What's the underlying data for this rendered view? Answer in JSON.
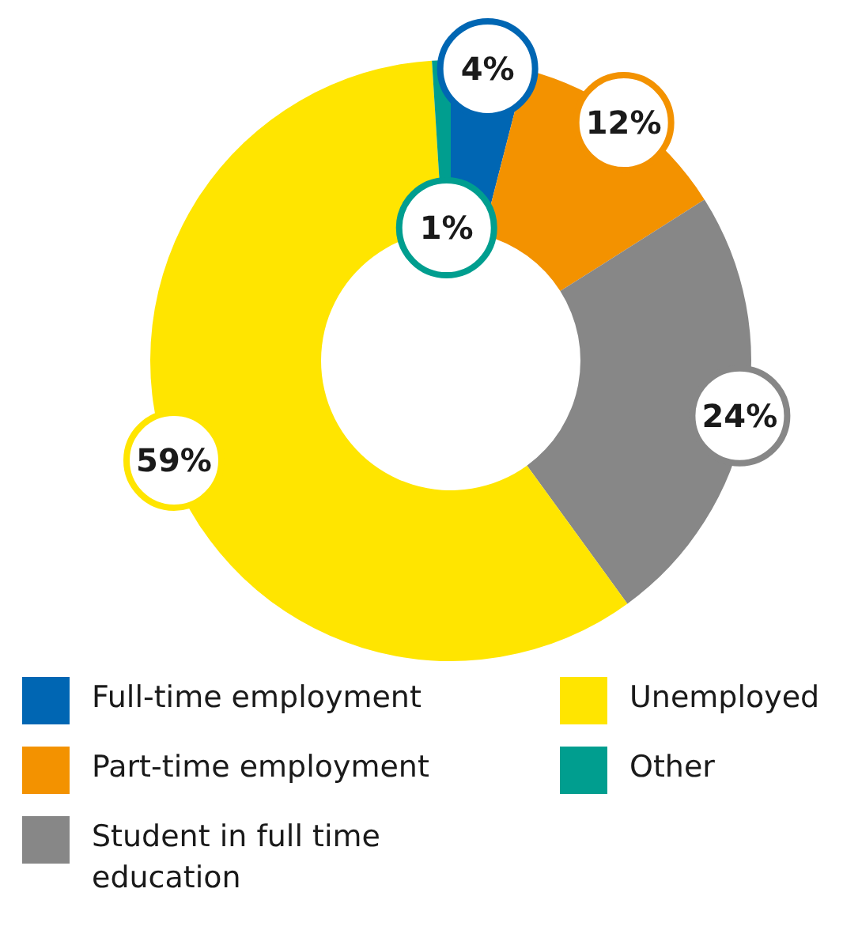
{
  "chart_data": {
    "type": "donut",
    "categories": [
      "Full-time employment",
      "Part-time employment",
      "Student in full time education",
      "Unemployed",
      "Other"
    ],
    "values": [
      4,
      12,
      24,
      59,
      1
    ],
    "value_labels": [
      "4%",
      "12%",
      "24%",
      "59%",
      "1%"
    ],
    "colors": [
      "#0066b3",
      "#f39200",
      "#878787",
      "#ffe500",
      "#009e8f"
    ],
    "legend": "bottom"
  }
}
